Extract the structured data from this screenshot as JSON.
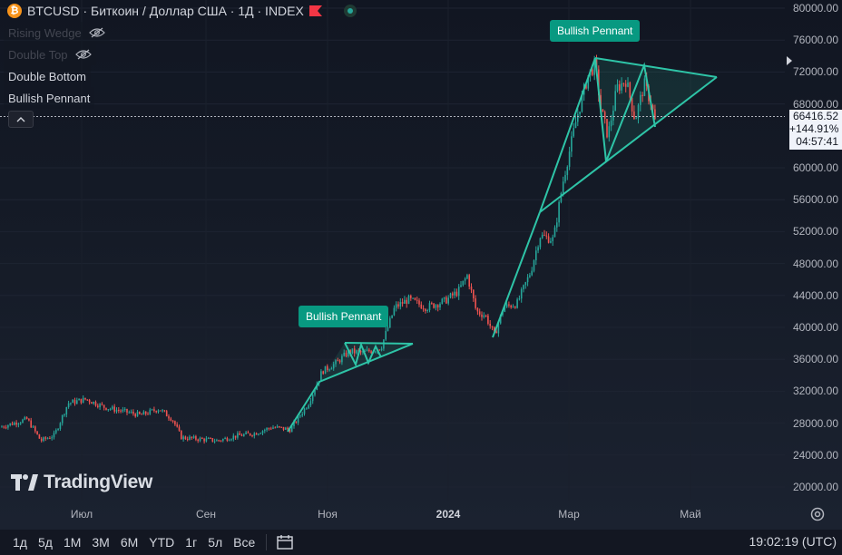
{
  "header": {
    "symbol_title": "BTCUSD · Биткоин / Доллар США · 1Д · INDEX",
    "coin_icon": "bitcoin-icon",
    "flag_icon": "flag-icon",
    "status_icon": "market-status-icon"
  },
  "indicators": [
    {
      "label": "Rising Wedge",
      "visible": false
    },
    {
      "label": "Double Top",
      "visible": false
    },
    {
      "label": "Double Bottom",
      "visible": true
    },
    {
      "label": "Bullish Pennant",
      "visible": true
    }
  ],
  "patterns": {
    "pennant1_label": "Bullish Pennant",
    "pennant2_label": "Bullish Pennant"
  },
  "price_axis": {
    "ticks": [
      "80000.00",
      "76000.00",
      "72000.00",
      "68000.00",
      "60000.00",
      "56000.00",
      "52000.00",
      "48000.00",
      "44000.00",
      "40000.00",
      "36000.00",
      "32000.00",
      "28000.00",
      "24000.00",
      "20000.00"
    ],
    "last_price": "66416.52",
    "change_pct": "+144.91%",
    "countdown": "04:57:41"
  },
  "time_axis": {
    "labels": [
      "Июл",
      "Сен",
      "Ноя",
      "2024",
      "Мар",
      "Май"
    ]
  },
  "bottom_bar": {
    "ranges": [
      "1д",
      "5д",
      "1М",
      "3М",
      "6М",
      "YTD",
      "1г",
      "5л",
      "Все"
    ],
    "clock": "19:02:19 (UTC)"
  },
  "watermark": "TradingView",
  "colors": {
    "up": "#26a69a",
    "down": "#ef5350",
    "pattern": "#2ec4a7",
    "label_bg": "#089981"
  },
  "chart_data": {
    "type": "candlestick",
    "ylim": [
      18000,
      81000
    ],
    "anchors": [
      [
        0,
        27500
      ],
      [
        30,
        28500
      ],
      [
        45,
        25800
      ],
      [
        60,
        26500
      ],
      [
        75,
        30500
      ],
      [
        95,
        31000
      ],
      [
        115,
        30000
      ],
      [
        135,
        29500
      ],
      [
        155,
        29000
      ],
      [
        175,
        29800
      ],
      [
        190,
        28500
      ],
      [
        200,
        26200
      ],
      [
        220,
        26000
      ],
      [
        240,
        25800
      ],
      [
        260,
        26400
      ],
      [
        280,
        26700
      ],
      [
        300,
        27500
      ],
      [
        320,
        27200
      ],
      [
        340,
        30500
      ],
      [
        355,
        34500
      ],
      [
        370,
        35500
      ],
      [
        385,
        37000
      ],
      [
        400,
        36800
      ],
      [
        420,
        37500
      ],
      [
        435,
        42500
      ],
      [
        450,
        43500
      ],
      [
        470,
        42500
      ],
      [
        490,
        43300
      ],
      [
        505,
        44500
      ],
      [
        515,
        46500
      ],
      [
        525,
        42000
      ],
      [
        535,
        41500
      ],
      [
        545,
        39000
      ],
      [
        555,
        42500
      ],
      [
        570,
        43000
      ],
      [
        585,
        47000
      ],
      [
        595,
        51500
      ],
      [
        610,
        51000
      ],
      [
        620,
        58000
      ],
      [
        635,
        66000
      ],
      [
        648,
        71500
      ],
      [
        656,
        73000
      ],
      [
        662,
        67500
      ],
      [
        670,
        64000
      ],
      [
        680,
        70000
      ],
      [
        690,
        71000
      ],
      [
        700,
        66000
      ],
      [
        710,
        70500
      ],
      [
        718,
        68000
      ],
      [
        722,
        65800
      ]
    ]
  }
}
